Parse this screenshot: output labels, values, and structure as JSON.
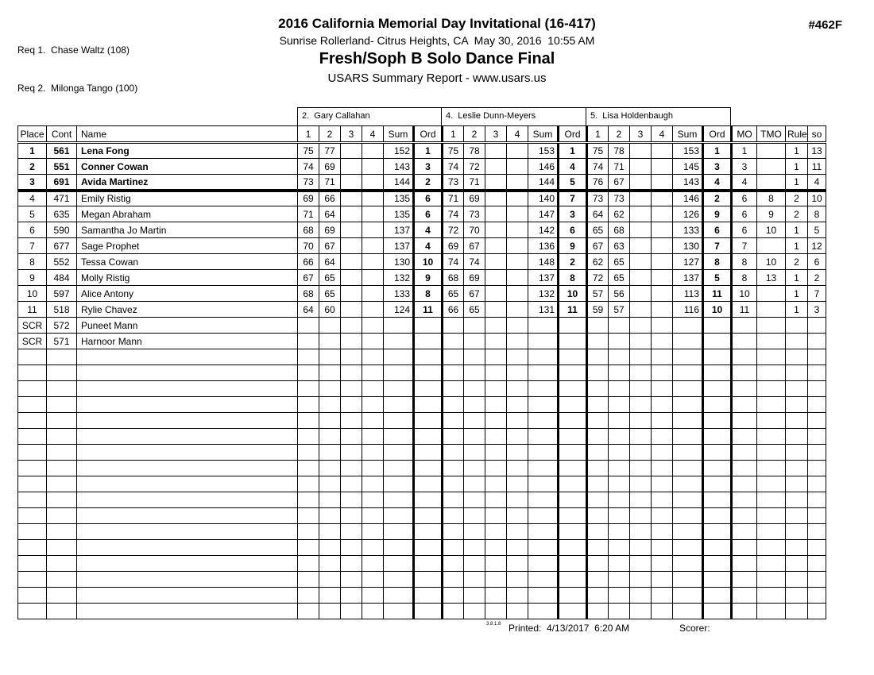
{
  "header": {
    "req_lines": [
      "Req 1.  Chase Waltz (108)",
      "Req 2.  Milonga Tango (100)"
    ],
    "title": "2016 California Memorial Day Invitational (16-417)",
    "subtitle": "Sunrise Rollerland- Citrus Heights, CA  May 30, 2016  10:55 AM",
    "event": "Fresh/Soph B Solo Dance Final",
    "report": "USARS Summary Report - www.usars.us",
    "event_code": "#462F"
  },
  "judges": [
    "2.  Gary Callahan",
    "4.  Leslie Dunn-Meyers",
    "5.  Lisa Holdenbaugh"
  ],
  "columns": {
    "place": "Place",
    "cont": "Cont",
    "name": "Name",
    "scores": [
      "1",
      "2",
      "3",
      "4"
    ],
    "sum": "Sum",
    "ord": "Ord",
    "mo": "MO",
    "tmo": "TMO",
    "rule": "Rule",
    "so": "so"
  },
  "rows": [
    {
      "place": "1",
      "cont": "561",
      "name": "Lena Fong",
      "bold": true,
      "separator": false,
      "judges": [
        [
          "75",
          "77",
          "",
          "",
          "152",
          "1"
        ],
        [
          "75",
          "78",
          "",
          "",
          "153",
          "1"
        ],
        [
          "75",
          "78",
          "",
          "",
          "153",
          "1"
        ]
      ],
      "mo": "1",
      "tmo": "",
      "rule": "1",
      "so": "13"
    },
    {
      "place": "2",
      "cont": "551",
      "name": "Conner Cowan",
      "bold": true,
      "separator": false,
      "judges": [
        [
          "74",
          "69",
          "",
          "",
          "143",
          "3"
        ],
        [
          "74",
          "72",
          "",
          "",
          "146",
          "4"
        ],
        [
          "74",
          "71",
          "",
          "",
          "145",
          "3"
        ]
      ],
      "mo": "3",
      "tmo": "",
      "rule": "1",
      "so": "11"
    },
    {
      "place": "3",
      "cont": "691",
      "name": "Avida Martinez",
      "bold": true,
      "separator": true,
      "judges": [
        [
          "73",
          "71",
          "",
          "",
          "144",
          "2"
        ],
        [
          "73",
          "71",
          "",
          "",
          "144",
          "5"
        ],
        [
          "76",
          "67",
          "",
          "",
          "143",
          "4"
        ]
      ],
      "mo": "4",
      "tmo": "",
      "rule": "1",
      "so": "4"
    },
    {
      "place": "4",
      "cont": "471",
      "name": "Emily Ristig",
      "bold": false,
      "separator": false,
      "judges": [
        [
          "69",
          "66",
          "",
          "",
          "135",
          "6"
        ],
        [
          "71",
          "69",
          "",
          "",
          "140",
          "7"
        ],
        [
          "73",
          "73",
          "",
          "",
          "146",
          "2"
        ]
      ],
      "mo": "6",
      "tmo": "8",
      "rule": "2",
      "so": "10"
    },
    {
      "place": "5",
      "cont": "635",
      "name": "Megan Abraham",
      "bold": false,
      "separator": false,
      "judges": [
        [
          "71",
          "64",
          "",
          "",
          "135",
          "6"
        ],
        [
          "74",
          "73",
          "",
          "",
          "147",
          "3"
        ],
        [
          "64",
          "62",
          "",
          "",
          "126",
          "9"
        ]
      ],
      "mo": "6",
      "tmo": "9",
      "rule": "2",
      "so": "8"
    },
    {
      "place": "6",
      "cont": "590",
      "name": "Samantha Jo Martin",
      "bold": false,
      "separator": false,
      "judges": [
        [
          "68",
          "69",
          "",
          "",
          "137",
          "4"
        ],
        [
          "72",
          "70",
          "",
          "",
          "142",
          "6"
        ],
        [
          "65",
          "68",
          "",
          "",
          "133",
          "6"
        ]
      ],
      "mo": "6",
      "tmo": "10",
      "rule": "1",
      "so": "5"
    },
    {
      "place": "7",
      "cont": "677",
      "name": "Sage Prophet",
      "bold": false,
      "separator": false,
      "judges": [
        [
          "70",
          "67",
          "",
          "",
          "137",
          "4"
        ],
        [
          "69",
          "67",
          "",
          "",
          "136",
          "9"
        ],
        [
          "67",
          "63",
          "",
          "",
          "130",
          "7"
        ]
      ],
      "mo": "7",
      "tmo": "",
      "rule": "1",
      "so": "12"
    },
    {
      "place": "8",
      "cont": "552",
      "name": "Tessa Cowan",
      "bold": false,
      "separator": false,
      "judges": [
        [
          "66",
          "64",
          "",
          "",
          "130",
          "10"
        ],
        [
          "74",
          "74",
          "",
          "",
          "148",
          "2"
        ],
        [
          "62",
          "65",
          "",
          "",
          "127",
          "8"
        ]
      ],
      "mo": "8",
      "tmo": "10",
      "rule": "2",
      "so": "6"
    },
    {
      "place": "9",
      "cont": "484",
      "name": "Molly Ristig",
      "bold": false,
      "separator": false,
      "judges": [
        [
          "67",
          "65",
          "",
          "",
          "132",
          "9"
        ],
        [
          "68",
          "69",
          "",
          "",
          "137",
          "8"
        ],
        [
          "72",
          "65",
          "",
          "",
          "137",
          "5"
        ]
      ],
      "mo": "8",
      "tmo": "13",
      "rule": "1",
      "so": "2"
    },
    {
      "place": "10",
      "cont": "597",
      "name": "Alice Antony",
      "bold": false,
      "separator": false,
      "judges": [
        [
          "68",
          "65",
          "",
          "",
          "133",
          "8"
        ],
        [
          "65",
          "67",
          "",
          "",
          "132",
          "10"
        ],
        [
          "57",
          "56",
          "",
          "",
          "113",
          "11"
        ]
      ],
      "mo": "10",
      "tmo": "",
      "rule": "1",
      "so": "7"
    },
    {
      "place": "11",
      "cont": "518",
      "name": "Rylie Chavez",
      "bold": false,
      "separator": false,
      "judges": [
        [
          "64",
          "60",
          "",
          "",
          "124",
          "11"
        ],
        [
          "66",
          "65",
          "",
          "",
          "131",
          "11"
        ],
        [
          "59",
          "57",
          "",
          "",
          "116",
          "10"
        ]
      ],
      "mo": "11",
      "tmo": "",
      "rule": "1",
      "so": "3"
    },
    {
      "place": "SCR",
      "cont": "572",
      "name": "Puneet Mann",
      "bold": false,
      "separator": false,
      "judges": [
        [
          "",
          "",
          "",
          "",
          "",
          ""
        ],
        [
          "",
          "",
          "",
          "",
          "",
          ""
        ],
        [
          "",
          "",
          "",
          "",
          "",
          ""
        ]
      ],
      "mo": "",
      "tmo": "",
      "rule": "",
      "so": ""
    },
    {
      "place": "SCR",
      "cont": "571",
      "name": "Harnoor Mann",
      "bold": false,
      "separator": false,
      "judges": [
        [
          "",
          "",
          "",
          "",
          "",
          ""
        ],
        [
          "",
          "",
          "",
          "",
          "",
          ""
        ],
        [
          "",
          "",
          "",
          "",
          "",
          ""
        ]
      ],
      "mo": "",
      "tmo": "",
      "rule": "",
      "so": ""
    }
  ],
  "empty_row_count": 17,
  "footer": {
    "version": "3.8.1.8",
    "printed": "Printed:  4/13/2017  6:20 AM",
    "scorer": "Scorer:"
  }
}
